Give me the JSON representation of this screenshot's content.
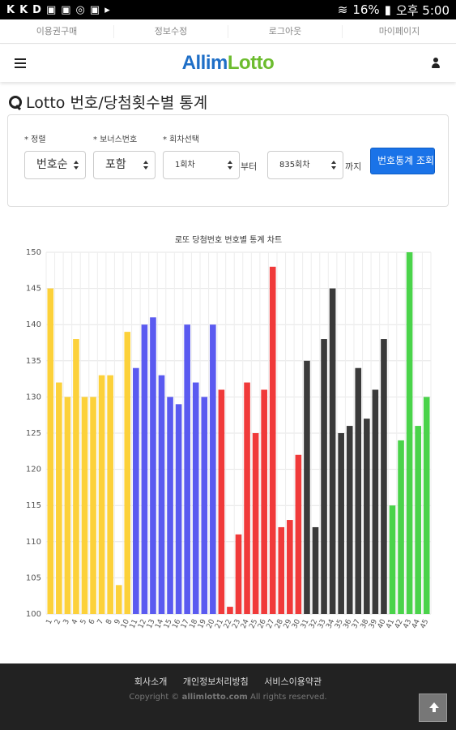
{
  "statusbar": {
    "left_icons": [
      "K",
      "K",
      "D",
      "▣",
      "▣",
      "◎",
      "▣",
      "▸"
    ],
    "battery": "16%",
    "time": "오후 5:00"
  },
  "topnav": {
    "items": [
      "이용권구매",
      "정보수정",
      "로그아웃",
      "마이페이지"
    ]
  },
  "header": {
    "logo_part1": "Allim",
    "logo_part2": "Lotto"
  },
  "page": {
    "title": "Lotto 번호/당첨횟수별 통계"
  },
  "filters": {
    "sort_label": "* 정렬",
    "sort_value": "번호순",
    "bonus_label": "* 보너스번호",
    "bonus_value": "포함",
    "round_label": "* 회차선택",
    "round_from": "1회차",
    "from_text": "부터",
    "round_to": "835회차",
    "to_text": "까지",
    "search_button": "번호통계 조회"
  },
  "chart_data": {
    "type": "bar",
    "title": "로또 당첨번호 번호별 통계 차트",
    "xlabel": "",
    "ylabel": "",
    "ylim": [
      100,
      150
    ],
    "yticks": [
      100,
      105,
      110,
      115,
      120,
      125,
      130,
      135,
      140,
      145,
      150
    ],
    "categories": [
      "1",
      "2",
      "3",
      "4",
      "5",
      "6",
      "7",
      "8",
      "9",
      "10",
      "11",
      "12",
      "13",
      "14",
      "15",
      "16",
      "17",
      "18",
      "19",
      "20",
      "21",
      "22",
      "23",
      "24",
      "25",
      "26",
      "27",
      "28",
      "29",
      "30",
      "31",
      "32",
      "33",
      "34",
      "35",
      "36",
      "37",
      "38",
      "39",
      "40",
      "41",
      "42",
      "43",
      "44",
      "45"
    ],
    "values": [
      145,
      132,
      130,
      138,
      130,
      130,
      133,
      133,
      104,
      139,
      134,
      140,
      141,
      133,
      130,
      129,
      140,
      132,
      130,
      140,
      131,
      101,
      111,
      132,
      125,
      131,
      148,
      112,
      113,
      122,
      135,
      112,
      138,
      145,
      125,
      126,
      134,
      127,
      131,
      138,
      115,
      124,
      150,
      126,
      130
    ],
    "grid": true,
    "legend": "none",
    "colors": {
      "1-10": "#fcd13a",
      "11-20": "#5a5af0",
      "21-30": "#f03a3a",
      "31-40": "#3a3a3a",
      "41-45": "#4ad34a"
    }
  },
  "footer": {
    "links": [
      "회사소개",
      "개인정보처리방침",
      "서비스이용약관"
    ],
    "copyright_prefix": "Copyright ©",
    "copyright_domain": "allimlotto.com",
    "copyright_suffix": "All rights reserved."
  }
}
